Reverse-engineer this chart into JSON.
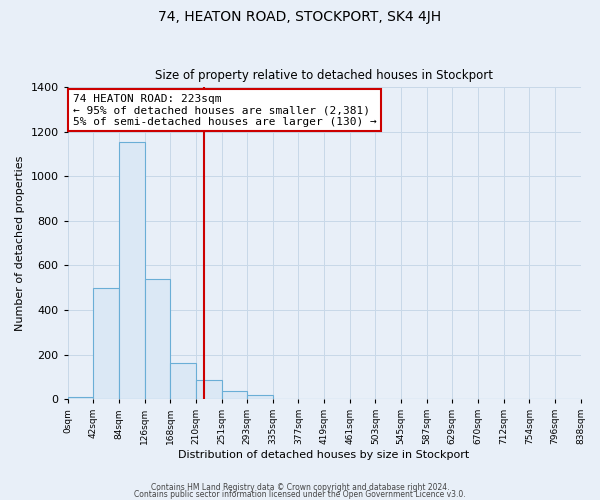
{
  "title": "74, HEATON ROAD, STOCKPORT, SK4 4JH",
  "subtitle": "Size of property relative to detached houses in Stockport",
  "xlabel": "Distribution of detached houses by size in Stockport",
  "ylabel": "Number of detached properties",
  "bin_edges": [
    0,
    42,
    84,
    126,
    168,
    210,
    252,
    294,
    336,
    378,
    420,
    462,
    504,
    546,
    588,
    630,
    672,
    714,
    756,
    798,
    840
  ],
  "bar_heights": [
    10,
    500,
    1155,
    540,
    160,
    85,
    35,
    18,
    0,
    0,
    0,
    0,
    0,
    0,
    0,
    0,
    0,
    0,
    0,
    0
  ],
  "bar_face_color": "#dbe8f5",
  "bar_edge_color": "#6aaed6",
  "vline_x": 223,
  "vline_color": "#cc0000",
  "annotation_text": "74 HEATON ROAD: 223sqm\n← 95% of detached houses are smaller (2,381)\n5% of semi-detached houses are larger (130) →",
  "annotation_box_color": "#ffffff",
  "annotation_box_edge": "#cc0000",
  "ylim": [
    0,
    1400
  ],
  "yticks": [
    0,
    200,
    400,
    600,
    800,
    1000,
    1200,
    1400
  ],
  "xlim": [
    0,
    840
  ],
  "xtick_labels": [
    "0sqm",
    "42sqm",
    "84sqm",
    "126sqm",
    "168sqm",
    "210sqm",
    "251sqm",
    "293sqm",
    "335sqm",
    "377sqm",
    "419sqm",
    "461sqm",
    "503sqm",
    "545sqm",
    "587sqm",
    "629sqm",
    "670sqm",
    "712sqm",
    "754sqm",
    "796sqm",
    "838sqm"
  ],
  "grid_color": "#c8d8e8",
  "bg_color": "#e8eff8",
  "footer_line1": "Contains HM Land Registry data © Crown copyright and database right 2024.",
  "footer_line2": "Contains public sector information licensed under the Open Government Licence v3.0."
}
